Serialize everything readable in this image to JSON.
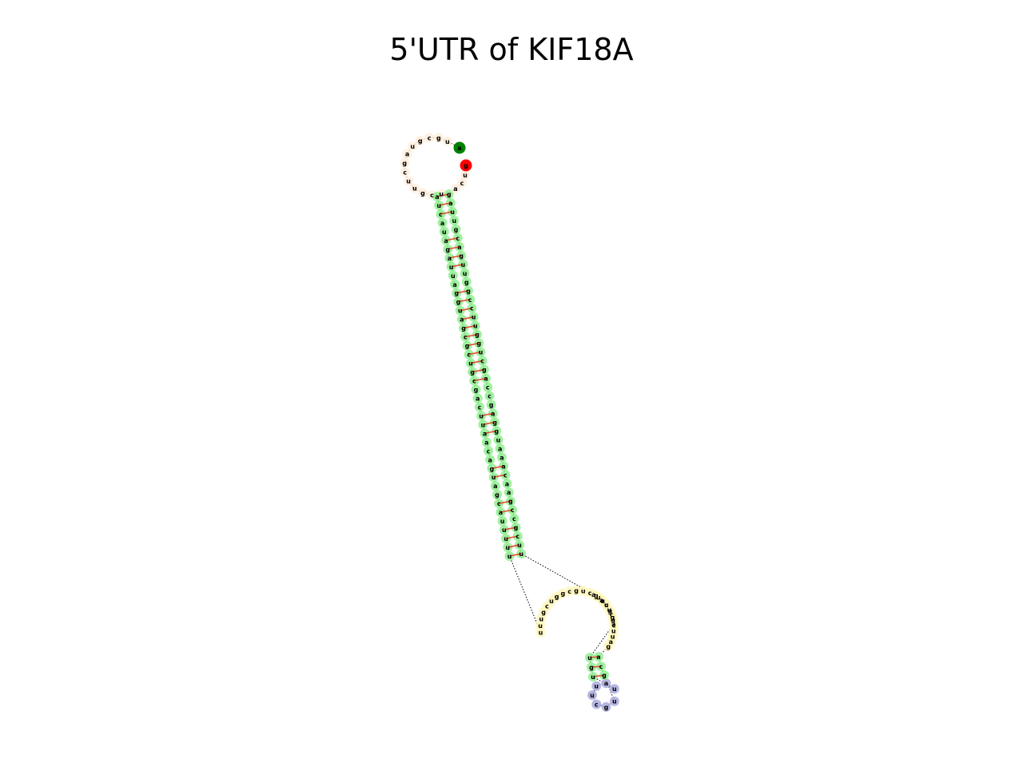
{
  "title": "5'UTR of KIF18A",
  "sequence": "augcguagcuugcuaucauagauuagguagcgcugcgacuuaacaguagcauuuuuuuugcuggcgucgauggauguuauucgugcagauucgcucuuauucgccgaacaaauggagccagcugguuccgguugacguuagacugg",
  "structure_legend": {
    "start_marker_color": "#008000",
    "end_marker_color": "#ff0000",
    "stem_color": "#90ee90",
    "hairpin_color": "#aaaadd",
    "multiloop_color": "#ffeedd",
    "interior_loop_color": "#fff7bb",
    "pair_line_color": "#e05030"
  }
}
